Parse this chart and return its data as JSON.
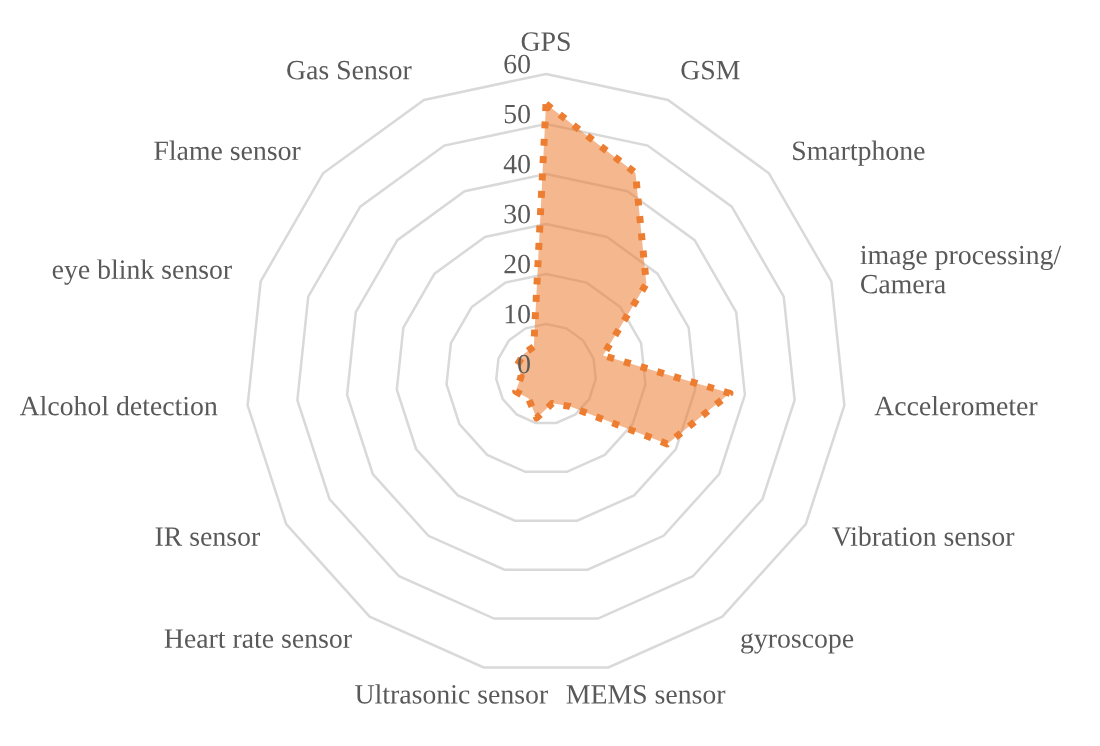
{
  "chart_data": {
    "type": "radar",
    "categories": [
      "GPS",
      "GSM",
      "Smartphone",
      "image processing/\nCamera",
      "Accelerometer",
      "Vibration sensor",
      "gyroscope",
      "MEMS sensor",
      "Ultrasonic sensor",
      "Heart rate sensor",
      "IR sensor",
      "Alcohol detection",
      "eye blink sensor",
      "Flame sensor",
      "Gas Sensor"
    ],
    "series": [
      {
        "color": "#ed7d31",
        "values": [
          54,
          44,
          27,
          12,
          37,
          28,
          8,
          6,
          9,
          6,
          7,
          5,
          6,
          6,
          6
        ]
      }
    ],
    "ylim": [
      0,
      60
    ],
    "yticks": [
      0,
      10,
      20,
      30,
      40,
      50,
      60
    ],
    "line_style": "dotted",
    "grid": true,
    "legend": false
  }
}
